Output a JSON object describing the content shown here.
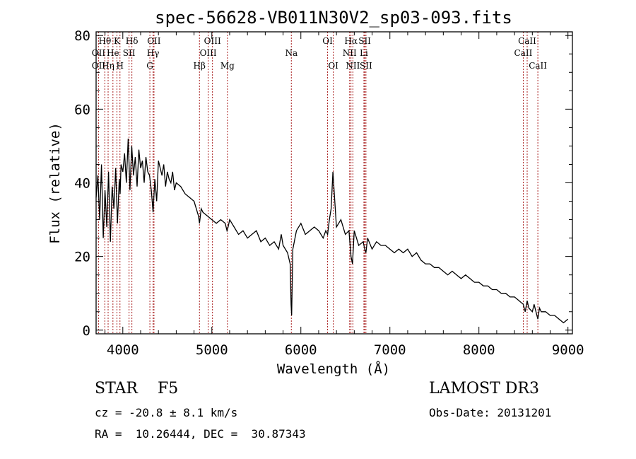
{
  "chart_data": {
    "type": "line",
    "title": "spec-56628-VB011N30V2_sp03-093.fits",
    "xlabel": "Wavelength (Å)",
    "ylabel": "Flux (relative)",
    "xlim": [
      3700,
      9050
    ],
    "ylim": [
      -1,
      81
    ],
    "xticks": [
      4000,
      5000,
      6000,
      7000,
      8000,
      9000
    ],
    "yticks": [
      0,
      20,
      40,
      60,
      80
    ],
    "grid": false,
    "series": [
      {
        "name": "flux",
        "x": [
          3700,
          3720,
          3740,
          3760,
          3780,
          3800,
          3820,
          3840,
          3860,
          3880,
          3900,
          3920,
          3940,
          3960,
          3970,
          3980,
          4000,
          4020,
          4040,
          4060,
          4080,
          4100,
          4120,
          4140,
          4160,
          4180,
          4200,
          4220,
          4240,
          4260,
          4280,
          4300,
          4320,
          4340,
          4360,
          4380,
          4400,
          4420,
          4440,
          4460,
          4480,
          4500,
          4520,
          4540,
          4560,
          4580,
          4600,
          4650,
          4700,
          4750,
          4800,
          4850,
          4861,
          4880,
          4900,
          4950,
          5000,
          5050,
          5100,
          5150,
          5170,
          5183,
          5200,
          5250,
          5300,
          5350,
          5400,
          5450,
          5500,
          5550,
          5600,
          5650,
          5700,
          5750,
          5780,
          5800,
          5850,
          5880,
          5890,
          5896,
          5910,
          5950,
          6000,
          6050,
          6100,
          6150,
          6200,
          6250,
          6280,
          6300,
          6320,
          6340,
          6360,
          6400,
          6450,
          6500,
          6540,
          6563,
          6580,
          6600,
          6650,
          6700,
          6717,
          6731,
          6750,
          6800,
          6850,
          6900,
          6950,
          7000,
          7050,
          7100,
          7150,
          7200,
          7250,
          7300,
          7350,
          7400,
          7450,
          7500,
          7550,
          7600,
          7650,
          7700,
          7750,
          7800,
          7850,
          7900,
          7950,
          8000,
          8050,
          8100,
          8150,
          8200,
          8250,
          8300,
          8350,
          8400,
          8450,
          8498,
          8520,
          8542,
          8560,
          8600,
          8620,
          8662,
          8680,
          8700,
          8750,
          8800,
          8850,
          8900,
          8950,
          9000
        ],
        "values": [
          36,
          42,
          30,
          45,
          25,
          38,
          28,
          43,
          24,
          39,
          33,
          44,
          29,
          41,
          37,
          45,
          43,
          48,
          40,
          52,
          38,
          50,
          42,
          47,
          39,
          49,
          44,
          46,
          40,
          47,
          43,
          42,
          38,
          32,
          41,
          35,
          46,
          44,
          42,
          45,
          39,
          43,
          41,
          40,
          43,
          38,
          40,
          39,
          37,
          36,
          35,
          31,
          29,
          33,
          32,
          31,
          30,
          29,
          30,
          29,
          27,
          28,
          30,
          28,
          26,
          27,
          25,
          26,
          27,
          24,
          25,
          23,
          24,
          22,
          26,
          23,
          21,
          18,
          7,
          4,
          22,
          27,
          29,
          26,
          27,
          28,
          27,
          25,
          27,
          26,
          30,
          33,
          43,
          28,
          30,
          26,
          27,
          20,
          18,
          27,
          23,
          24,
          22,
          21,
          25,
          22,
          24,
          23,
          23,
          22,
          21,
          22,
          21,
          22,
          20,
          21,
          19,
          18,
          18,
          17,
          17,
          16,
          15,
          16,
          15,
          14,
          15,
          14,
          13,
          13,
          12,
          12,
          11,
          11,
          10,
          10,
          9,
          9,
          8,
          7,
          5,
          8,
          6,
          5,
          7,
          3,
          6,
          5,
          5,
          4,
          4,
          3,
          2,
          3
        ]
      }
    ],
    "lines": [
      {
        "label": "Hθ",
        "wl": 3798,
        "row": 0
      },
      {
        "label": "OII",
        "wl": 3727,
        "row": 1
      },
      {
        "label": "OII",
        "wl": 3727,
        "row": 2
      },
      {
        "label": "He",
        "wl": 3889,
        "row": 1
      },
      {
        "label": "Hη",
        "wl": 3835,
        "row": 2
      },
      {
        "label": "K",
        "wl": 3934,
        "row": 0
      },
      {
        "label": "SII",
        "wl": 4070,
        "row": 1
      },
      {
        "label": "H",
        "wl": 3968,
        "row": 2
      },
      {
        "label": "Hδ",
        "wl": 4102,
        "row": 0
      },
      {
        "label": "OII",
        "wl": 4350,
        "row": 0
      },
      {
        "label": "Hγ",
        "wl": 4340,
        "row": 1
      },
      {
        "label": "G",
        "wl": 4304,
        "row": 2
      },
      {
        "label": "OIII",
        "wl": 5007,
        "row": 0
      },
      {
        "label": "OIII",
        "wl": 4959,
        "row": 1
      },
      {
        "label": "Hβ",
        "wl": 4861,
        "row": 2
      },
      {
        "label": "Mg",
        "wl": 5175,
        "row": 2
      },
      {
        "label": "Na",
        "wl": 5893,
        "row": 1
      },
      {
        "label": "OI",
        "wl": 6300,
        "row": 0
      },
      {
        "label": "OI",
        "wl": 6364,
        "row": 2
      },
      {
        "label": "Hα",
        "wl": 6563,
        "row": 0
      },
      {
        "label": "SII",
        "wl": 6717,
        "row": 0
      },
      {
        "label": "NII",
        "wl": 6548,
        "row": 1
      },
      {
        "label": "Li",
        "wl": 6708,
        "row": 1
      },
      {
        "label": "NII",
        "wl": 6584,
        "row": 2
      },
      {
        "label": "SII",
        "wl": 6731,
        "row": 2
      },
      {
        "label": "CaII",
        "wl": 8542,
        "row": 0
      },
      {
        "label": "CaII",
        "wl": 8498,
        "row": 1
      },
      {
        "label": "CaII",
        "wl": 8662,
        "row": 2
      }
    ]
  },
  "info": {
    "class_line": "STAR    F5",
    "survey": "LAMOST DR3",
    "cz": "cz = -20.8 ± 8.1 km/s",
    "obs_date": "Obs-Date: 20131201",
    "radec": "RA =  10.26444, DEC =  30.87343"
  },
  "colors": {
    "line_marker": "#aa2222",
    "spectrum": "#000000"
  }
}
